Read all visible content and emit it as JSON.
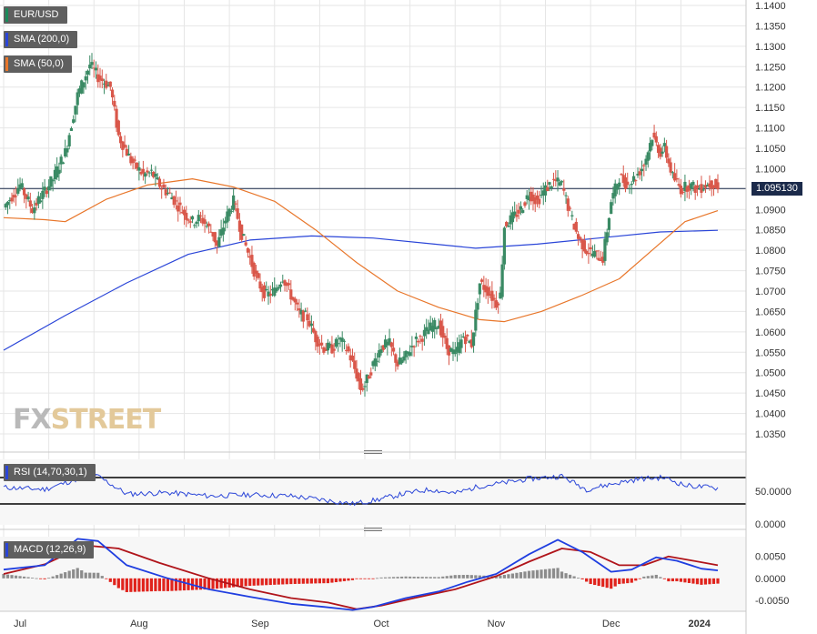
{
  "legends": {
    "price": "EUR/USD",
    "sma200": "SMA (200,0)",
    "sma50": "SMA (50,0)",
    "rsi": "RSI (14,70,30,1)",
    "macd": "MACD (12,26,9)"
  },
  "watermark": {
    "part1": "FX",
    "part2": "STREET"
  },
  "colors": {
    "up": "#3a8a64",
    "down": "#d9574a",
    "sma200": "#2a45d8",
    "sma50": "#e8762a",
    "rsi": "#2a45d8",
    "macd_line": "#1f3ee0",
    "signal_line": "#b0141a",
    "hist_pos": "#8c8c8c",
    "hist_neg": "#e0231c",
    "grid": "#e6e6e6",
    "legend_bg": "#5f5f5f"
  },
  "chart_data": {
    "type": "candlestick",
    "symbol": "EUR/USD",
    "last_price": "1.095130",
    "x_labels": [
      "Jul",
      "Aug",
      "Sep",
      "Oct",
      "Nov",
      "Dec",
      "2024"
    ],
    "price_axis": {
      "ylim": [
        1.035,
        1.14
      ],
      "tick_labels": [
        "1.1400",
        "1.1350",
        "1.1300",
        "1.1250",
        "1.1200",
        "1.1150",
        "1.1100",
        "1.1050",
        "1.1000",
        "1.0950",
        "1.0900",
        "1.0850",
        "1.0800",
        "1.0750",
        "1.0700",
        "1.0650",
        "1.0600",
        "1.0550",
        "1.0500",
        "1.0450",
        "1.0400",
        "1.0350"
      ]
    },
    "close_path": [
      [
        0,
        1.0905
      ],
      [
        8,
        1.096
      ],
      [
        14,
        1.09
      ],
      [
        24,
        1.0975
      ],
      [
        30,
        1.104
      ],
      [
        36,
        1.118
      ],
      [
        42,
        1.1255
      ],
      [
        46,
        1.1225
      ],
      [
        52,
        1.12
      ],
      [
        56,
        1.108
      ],
      [
        62,
        1.102
      ],
      [
        68,
        1.0985
      ],
      [
        72,
        1.099
      ],
      [
        76,
        1.096
      ],
      [
        82,
        1.093
      ],
      [
        88,
        1.089
      ],
      [
        92,
        1.087
      ],
      [
        96,
        1.088
      ],
      [
        102,
        1.084
      ],
      [
        104,
        1.081
      ],
      [
        108,
        1.0875
      ],
      [
        112,
        1.092
      ],
      [
        116,
        1.084
      ],
      [
        120,
        1.078
      ],
      [
        124,
        1.072
      ],
      [
        128,
        1.069
      ],
      [
        132,
        1.07
      ],
      [
        136,
        1.0735
      ],
      [
        140,
        1.069
      ],
      [
        144,
        1.0645
      ],
      [
        148,
        1.0635
      ],
      [
        152,
        1.0585
      ],
      [
        156,
        1.056
      ],
      [
        160,
        1.056
      ],
      [
        164,
        1.058
      ],
      [
        168,
        1.055
      ],
      [
        172,
        1.0495
      ],
      [
        174,
        1.046
      ],
      [
        176,
        1.047
      ],
      [
        180,
        1.052
      ],
      [
        184,
        1.0565
      ],
      [
        188,
        1.057
      ],
      [
        192,
        1.052
      ],
      [
        196,
        1.054
      ],
      [
        200,
        1.0575
      ],
      [
        204,
        1.059
      ],
      [
        208,
        1.061
      ],
      [
        212,
        1.062
      ],
      [
        216,
        1.056
      ],
      [
        220,
        1.0545
      ],
      [
        224,
        1.059
      ],
      [
        228,
        1.057
      ],
      [
        232,
        1.072
      ],
      [
        236,
        1.07
      ],
      [
        240,
        1.067
      ],
      [
        242,
        1.069
      ],
      [
        244,
        1.086
      ],
      [
        248,
        1.088
      ],
      [
        252,
        1.09
      ],
      [
        256,
        1.094
      ],
      [
        260,
        1.092
      ],
      [
        264,
        1.095
      ],
      [
        268,
        1.097
      ],
      [
        272,
        1.096
      ],
      [
        276,
        1.089
      ],
      [
        280,
        1.083
      ],
      [
        284,
        1.08
      ],
      [
        288,
        1.079
      ],
      [
        292,
        1.078
      ],
      [
        296,
        1.092
      ],
      [
        300,
        1.098
      ],
      [
        304,
        1.096
      ],
      [
        308,
        1.098
      ],
      [
        312,
        1.101
      ],
      [
        316,
        1.108
      ],
      [
        320,
        1.104
      ],
      [
        322,
        1.105
      ],
      [
        326,
        1.098
      ],
      [
        330,
        1.095
      ],
      [
        334,
        1.096
      ],
      [
        338,
        1.095
      ],
      [
        342,
        1.096
      ],
      [
        346,
        1.0965
      ],
      [
        348,
        1.095
      ]
    ],
    "sma200": [
      [
        0,
        1.0555
      ],
      [
        30,
        1.064
      ],
      [
        60,
        1.072
      ],
      [
        90,
        1.079
      ],
      [
        120,
        1.0825
      ],
      [
        150,
        1.0835
      ],
      [
        180,
        1.083
      ],
      [
        210,
        1.0815
      ],
      [
        230,
        1.0805
      ],
      [
        260,
        1.0815
      ],
      [
        290,
        1.083
      ],
      [
        320,
        1.0845
      ],
      [
        348,
        1.0849
      ]
    ],
    "sma50": [
      [
        0,
        1.088
      ],
      [
        20,
        1.0875
      ],
      [
        30,
        1.087
      ],
      [
        50,
        1.0925
      ],
      [
        70,
        1.096
      ],
      [
        92,
        1.0975
      ],
      [
        112,
        1.0955
      ],
      [
        132,
        1.092
      ],
      [
        152,
        1.085
      ],
      [
        172,
        1.077
      ],
      [
        192,
        1.07
      ],
      [
        212,
        1.066
      ],
      [
        232,
        1.063
      ],
      [
        244,
        1.0625
      ],
      [
        262,
        1.065
      ],
      [
        282,
        1.069
      ],
      [
        300,
        1.073
      ],
      [
        316,
        1.08
      ],
      [
        332,
        1.087
      ],
      [
        348,
        1.0897
      ]
    ],
    "rsi": {
      "tick_labels": [
        "50.0000",
        "0.0000"
      ],
      "levels": [
        70,
        30
      ],
      "ylim": [
        0,
        100
      ],
      "values": [
        [
          0,
          55
        ],
        [
          20,
          52
        ],
        [
          36,
          68
        ],
        [
          46,
          72
        ],
        [
          60,
          45
        ],
        [
          80,
          47
        ],
        [
          100,
          42
        ],
        [
          120,
          44
        ],
        [
          140,
          42
        ],
        [
          156,
          36
        ],
        [
          170,
          30
        ],
        [
          180,
          35
        ],
        [
          196,
          46
        ],
        [
          208,
          52
        ],
        [
          220,
          46
        ],
        [
          232,
          57
        ],
        [
          244,
          62
        ],
        [
          256,
          68
        ],
        [
          272,
          72
        ],
        [
          284,
          52
        ],
        [
          296,
          60
        ],
        [
          310,
          68
        ],
        [
          322,
          70
        ],
        [
          332,
          58
        ],
        [
          348,
          54
        ]
      ]
    },
    "macd": {
      "tick_labels": [
        "0.0050",
        "0.0000",
        "-0.0050"
      ],
      "ylim": [
        -0.0075,
        0.0095
      ],
      "macd_line": [
        [
          0,
          0.002
        ],
        [
          20,
          0.003
        ],
        [
          36,
          0.009
        ],
        [
          46,
          0.0085
        ],
        [
          60,
          0.003
        ],
        [
          80,
          0.0
        ],
        [
          100,
          -0.0025
        ],
        [
          120,
          -0.0042
        ],
        [
          140,
          -0.0058
        ],
        [
          156,
          -0.0065
        ],
        [
          170,
          -0.0072
        ],
        [
          180,
          -0.0065
        ],
        [
          196,
          -0.0045
        ],
        [
          212,
          -0.003
        ],
        [
          226,
          -0.0008
        ],
        [
          240,
          0.001
        ],
        [
          256,
          0.0055
        ],
        [
          270,
          0.0088
        ],
        [
          282,
          0.006
        ],
        [
          296,
          0.0015
        ],
        [
          306,
          0.002
        ],
        [
          318,
          0.0048
        ],
        [
          328,
          0.004
        ],
        [
          340,
          0.0022
        ],
        [
          348,
          0.0018
        ]
      ],
      "signal_line": [
        [
          0,
          0.001
        ],
        [
          20,
          0.0032
        ],
        [
          40,
          0.0075
        ],
        [
          56,
          0.0068
        ],
        [
          76,
          0.0035
        ],
        [
          100,
          0.0
        ],
        [
          120,
          -0.0025
        ],
        [
          140,
          -0.0045
        ],
        [
          158,
          -0.0055
        ],
        [
          172,
          -0.007
        ],
        [
          184,
          -0.0062
        ],
        [
          200,
          -0.0045
        ],
        [
          220,
          -0.0025
        ],
        [
          240,
          0.0005
        ],
        [
          256,
          0.0038
        ],
        [
          272,
          0.0068
        ],
        [
          286,
          0.006
        ],
        [
          300,
          0.003
        ],
        [
          312,
          0.003
        ],
        [
          324,
          0.005
        ],
        [
          336,
          0.004
        ],
        [
          348,
          0.003
        ]
      ]
    }
  }
}
